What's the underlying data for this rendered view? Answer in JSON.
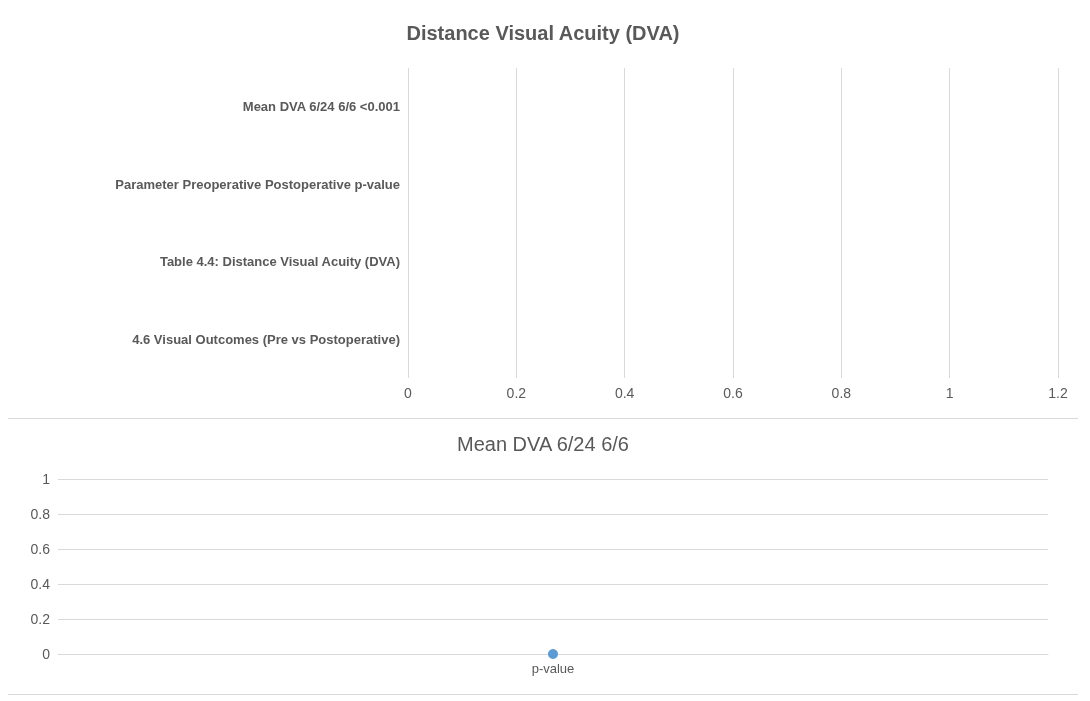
{
  "chart_data": [
    {
      "type": "bar",
      "orientation": "horizontal",
      "title": "Distance Visual Acuity (DVA)",
      "categories": [
        "Mean DVA 6/24 6/6 <0.001",
        "Parameter Preoperative Postoperative p-value",
        "Table 4.4: Distance Visual Acuity (DVA)",
        "4.6 Visual Outcomes (Pre vs Postoperative)"
      ],
      "values": [
        null,
        null,
        null,
        null
      ],
      "xlim": [
        0,
        1.2
      ],
      "xticks": [
        0,
        0.2,
        0.4,
        0.6,
        0.8,
        1,
        1.2
      ],
      "grid": "x"
    },
    {
      "type": "line",
      "title": "Mean DVA 6/24 6/6",
      "categories": [
        "p-value"
      ],
      "series": [
        {
          "color": "#5b9bd5",
          "values": [
            0
          ]
        }
      ],
      "ylim": [
        0,
        1
      ],
      "yticks": [
        0,
        0.2,
        0.4,
        0.6,
        0.8,
        1
      ],
      "grid": "y",
      "marker": "circle"
    }
  ]
}
